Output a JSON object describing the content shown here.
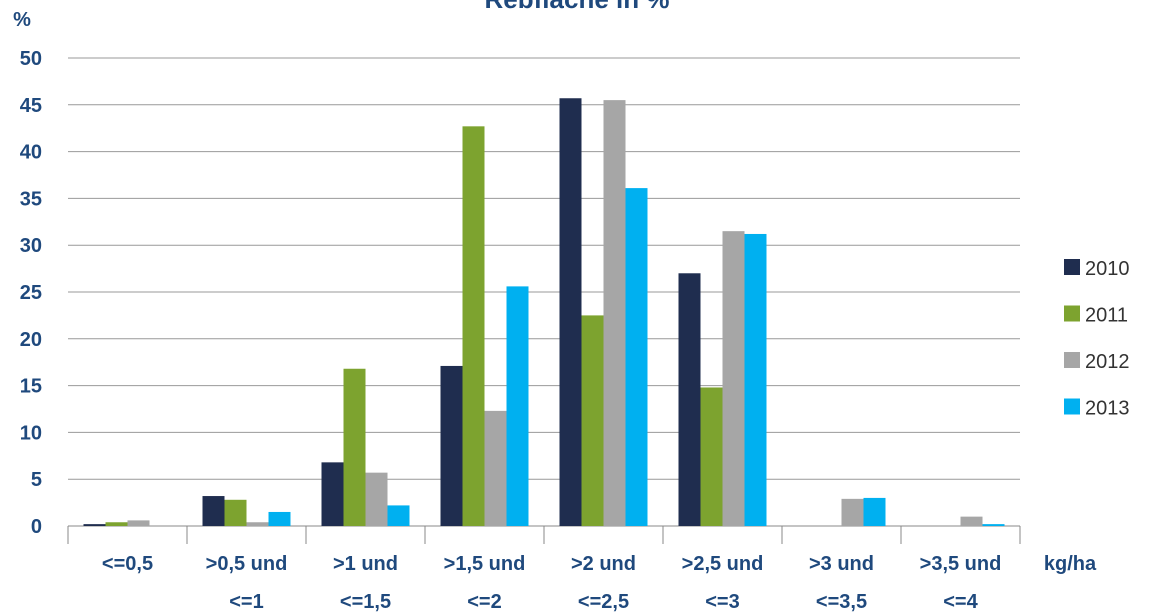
{
  "chart_data": {
    "type": "bar",
    "title": "Rebfläche in %",
    "y_label": "%",
    "x_label": "kg/ha",
    "categories": [
      [
        "<=0,5"
      ],
      [
        ">0,5 und",
        "<=1"
      ],
      [
        ">1 und",
        "<=1,5"
      ],
      [
        ">1,5 und",
        "<=2"
      ],
      [
        ">2 und",
        "<=2,5"
      ],
      [
        ">2,5 und",
        "<=3"
      ],
      [
        ">3 und",
        "<=3,5"
      ],
      [
        ">3,5 und",
        "<=4"
      ]
    ],
    "series": [
      {
        "name": "2010",
        "color": "#1f2d4f",
        "values": [
          0.2,
          3.2,
          6.8,
          17.1,
          45.7,
          27.0,
          0,
          0
        ]
      },
      {
        "name": "2011",
        "color": "#7da32f",
        "values": [
          0.4,
          2.8,
          16.8,
          42.7,
          22.5,
          14.8,
          0,
          0
        ]
      },
      {
        "name": "2012",
        "color": "#a6a6a6",
        "values": [
          0.6,
          0.4,
          5.7,
          12.3,
          45.5,
          31.5,
          2.9,
          1.0
        ]
      },
      {
        "name": "2013",
        "color": "#00b0f0",
        "values": [
          0,
          1.5,
          2.2,
          25.6,
          36.1,
          31.2,
          3.0,
          0.2
        ]
      }
    ],
    "ylim": [
      0,
      50
    ],
    "yticks": [
      0,
      5,
      10,
      15,
      20,
      25,
      30,
      35,
      40,
      45,
      50
    ],
    "grid": true,
    "legend": "right"
  }
}
